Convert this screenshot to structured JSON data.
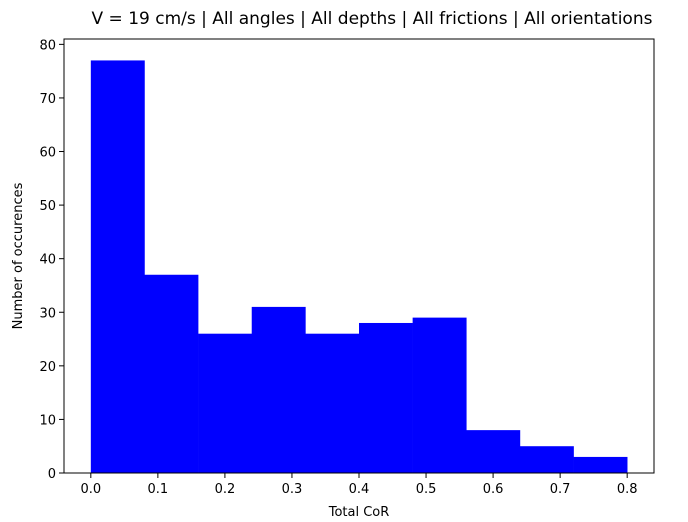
{
  "chart_data": {
    "type": "bar",
    "title": "V = 19 cm/s | All angles | All depths | All frictions | All orientations",
    "xlabel": "Total CoR",
    "ylabel": "Number of occurences",
    "xlim": [
      -0.04,
      0.84
    ],
    "ylim": [
      0,
      81
    ],
    "x_ticks": [
      "0.0",
      "0.1",
      "0.2",
      "0.3",
      "0.4",
      "0.5",
      "0.6",
      "0.7",
      "0.8"
    ],
    "y_ticks": [
      "0",
      "10",
      "20",
      "30",
      "40",
      "50",
      "60",
      "70",
      "80"
    ],
    "bin_edges": [
      0.0,
      0.08,
      0.16,
      0.24,
      0.32,
      0.4,
      0.48,
      0.56,
      0.64,
      0.72,
      0.8
    ],
    "values": [
      77,
      37,
      26,
      31,
      26,
      28,
      29,
      8,
      5,
      3
    ],
    "bar_color": "#0000ff",
    "grid": false,
    "legend": "none"
  }
}
